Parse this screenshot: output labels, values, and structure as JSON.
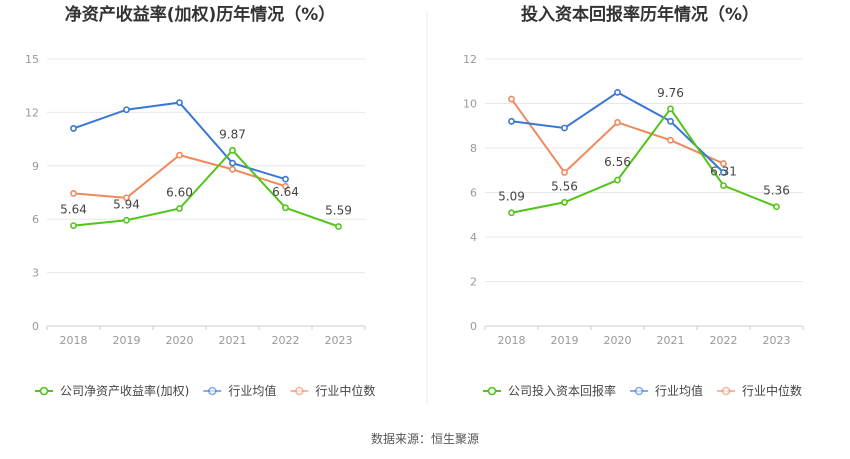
{
  "colors": {
    "company": "#52c41a",
    "industry_avg": "#3a76d6",
    "industry_median": "#f08a5d",
    "grid": "#e8e8e8",
    "axis": "#cccccc"
  },
  "source_text": "数据来源：恒生聚源",
  "chart_data": [
    {
      "type": "line",
      "title": "净资产收益率(加权)历年情况（%）",
      "categories": [
        "2018",
        "2019",
        "2020",
        "2021",
        "2022",
        "2023"
      ],
      "ylim": [
        0,
        15
      ],
      "yticks": [
        0,
        3,
        6,
        9,
        12,
        15
      ],
      "grid": true,
      "legend_position": "bottom",
      "series": [
        {
          "name": "公司净资产收益率(加权)",
          "key": "company",
          "values": [
            5.64,
            5.94,
            6.6,
            9.87,
            6.64,
            5.59
          ],
          "labels": [
            "5.64",
            "5.94",
            "6.60",
            "9.87",
            "6.64",
            "5.59"
          ]
        },
        {
          "name": "行业均值",
          "key": "industry_avg",
          "values": [
            11.1,
            12.15,
            12.55,
            9.15,
            8.25,
            null
          ]
        },
        {
          "name": "行业中位数",
          "key": "industry_median",
          "values": [
            7.45,
            7.2,
            9.6,
            8.8,
            7.85,
            null
          ]
        }
      ]
    },
    {
      "type": "line",
      "title": "投入资本回报率历年情况（%）",
      "categories": [
        "2018",
        "2019",
        "2020",
        "2021",
        "2022",
        "2023"
      ],
      "ylim": [
        0,
        12
      ],
      "yticks": [
        0,
        2,
        4,
        6,
        8,
        10,
        12
      ],
      "grid": true,
      "legend_position": "bottom",
      "series": [
        {
          "name": "公司投入资本回报率",
          "key": "company",
          "values": [
            5.09,
            5.56,
            6.56,
            9.76,
            6.31,
            5.36
          ],
          "labels": [
            "5.09",
            "5.56",
            "6.56",
            "9.76",
            "6.31",
            "5.36"
          ]
        },
        {
          "name": "行业均值",
          "key": "industry_avg",
          "values": [
            9.2,
            8.9,
            10.5,
            9.2,
            6.9,
            null
          ]
        },
        {
          "name": "行业中位数",
          "key": "industry_median",
          "values": [
            10.2,
            6.9,
            9.15,
            8.35,
            7.3,
            null
          ]
        }
      ]
    }
  ]
}
